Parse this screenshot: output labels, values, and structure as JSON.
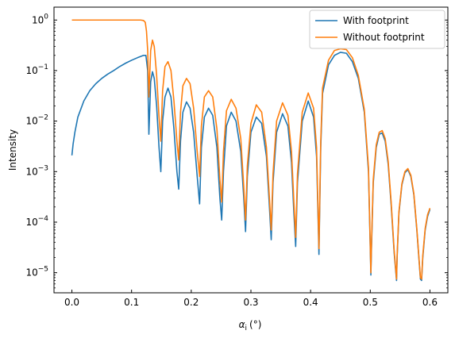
{
  "chart_data": {
    "type": "line",
    "title": "",
    "xlabel_main": "α",
    "xlabel_sub": "i",
    "xlabel_unit": "(°)",
    "ylabel": "Intensity",
    "xlim": [
      -0.03,
      0.63
    ],
    "ylim": [
      4e-06,
      1.8
    ],
    "yscale": "log",
    "x_ticks": [
      0.0,
      0.1,
      0.2,
      0.3,
      0.4,
      0.5,
      0.6
    ],
    "x_tick_labels": [
      "0.0",
      "0.1",
      "0.2",
      "0.3",
      "0.4",
      "0.5",
      "0.6"
    ],
    "y_ticks": [
      1e-05,
      0.0001,
      0.001,
      0.01,
      0.1,
      1
    ],
    "y_tick_labels": [
      {
        "base": "10",
        "exp": "−5"
      },
      {
        "base": "10",
        "exp": "−4"
      },
      {
        "base": "10",
        "exp": "−3"
      },
      {
        "base": "10",
        "exp": "−2"
      },
      {
        "base": "10",
        "exp": "−1"
      },
      {
        "base": "10",
        "exp": "0"
      }
    ],
    "grid": false,
    "legend_position": "top-right",
    "series": [
      {
        "name": "With footprint",
        "color": "#1f77b4",
        "x": [
          0.0,
          0.002,
          0.005,
          0.01,
          0.02,
          0.03,
          0.04,
          0.05,
          0.06,
          0.07,
          0.08,
          0.09,
          0.1,
          0.11,
          0.12,
          0.124,
          0.127,
          0.129,
          0.132,
          0.135,
          0.138,
          0.142,
          0.146,
          0.149,
          0.152,
          0.156,
          0.161,
          0.166,
          0.171,
          0.176,
          0.179,
          0.182,
          0.186,
          0.192,
          0.198,
          0.204,
          0.21,
          0.214,
          0.217,
          0.222,
          0.229,
          0.236,
          0.243,
          0.248,
          0.251,
          0.254,
          0.259,
          0.267,
          0.275,
          0.283,
          0.288,
          0.291,
          0.294,
          0.3,
          0.309,
          0.318,
          0.326,
          0.331,
          0.334,
          0.337,
          0.343,
          0.353,
          0.362,
          0.368,
          0.372,
          0.375,
          0.378,
          0.386,
          0.396,
          0.405,
          0.41,
          0.414,
          0.417,
          0.42,
          0.43,
          0.44,
          0.45,
          0.46,
          0.47,
          0.48,
          0.49,
          0.497,
          0.501,
          0.502,
          0.505,
          0.51,
          0.515,
          0.52,
          0.525,
          0.53,
          0.535,
          0.54,
          0.544,
          0.545,
          0.548,
          0.553,
          0.558,
          0.563,
          0.568,
          0.573,
          0.578,
          0.584,
          0.586,
          0.588,
          0.592,
          0.596,
          0.6
        ],
        "y": [
          0.0021,
          0.0035,
          0.006,
          0.012,
          0.025,
          0.04,
          0.055,
          0.07,
          0.085,
          0.1,
          0.12,
          0.14,
          0.16,
          0.18,
          0.2,
          0.2,
          0.1,
          0.0055,
          0.06,
          0.095,
          0.07,
          0.02,
          0.003,
          0.001,
          0.01,
          0.03,
          0.045,
          0.03,
          0.007,
          0.001,
          0.00045,
          0.004,
          0.015,
          0.024,
          0.018,
          0.006,
          0.0008,
          0.00023,
          0.003,
          0.012,
          0.018,
          0.013,
          0.003,
          0.0003,
          0.00011,
          0.001,
          0.008,
          0.015,
          0.01,
          0.0025,
          0.0003,
          6.5e-05,
          0.0008,
          0.006,
          0.012,
          0.009,
          0.002,
          0.0002,
          4.5e-05,
          0.0006,
          0.006,
          0.014,
          0.008,
          0.0015,
          0.00015,
          3.3e-05,
          0.0006,
          0.01,
          0.025,
          0.012,
          0.002,
          2.3e-05,
          0.003,
          0.035,
          0.13,
          0.2,
          0.23,
          0.22,
          0.15,
          0.07,
          0.015,
          0.001,
          9e-06,
          3e-05,
          0.0006,
          0.003,
          0.0055,
          0.0058,
          0.004,
          0.0014,
          0.00022,
          2.5e-05,
          7e-06,
          2e-05,
          0.00015,
          0.00055,
          0.00095,
          0.0011,
          0.0008,
          0.00035,
          7e-05,
          7.5e-06,
          7e-06,
          2e-05,
          7e-05,
          0.00013,
          0.00018
        ]
      },
      {
        "name": "Without footprint",
        "color": "#ff7f0e",
        "x": [
          0.0,
          0.02,
          0.04,
          0.06,
          0.08,
          0.1,
          0.115,
          0.12,
          0.123,
          0.125,
          0.127,
          0.129,
          0.132,
          0.135,
          0.138,
          0.142,
          0.146,
          0.149,
          0.152,
          0.156,
          0.161,
          0.166,
          0.171,
          0.176,
          0.179,
          0.182,
          0.186,
          0.192,
          0.198,
          0.204,
          0.21,
          0.214,
          0.217,
          0.222,
          0.229,
          0.236,
          0.243,
          0.248,
          0.251,
          0.254,
          0.259,
          0.267,
          0.275,
          0.283,
          0.288,
          0.291,
          0.294,
          0.3,
          0.309,
          0.318,
          0.326,
          0.331,
          0.334,
          0.337,
          0.343,
          0.353,
          0.362,
          0.368,
          0.372,
          0.375,
          0.378,
          0.386,
          0.396,
          0.405,
          0.41,
          0.414,
          0.417,
          0.42,
          0.43,
          0.44,
          0.45,
          0.46,
          0.47,
          0.48,
          0.49,
          0.497,
          0.501,
          0.502,
          0.505,
          0.51,
          0.515,
          0.52,
          0.525,
          0.53,
          0.535,
          0.54,
          0.544,
          0.545,
          0.548,
          0.553,
          0.558,
          0.563,
          0.568,
          0.573,
          0.578,
          0.584,
          0.586,
          0.588,
          0.592,
          0.596,
          0.6
        ],
        "y": [
          1.0,
          1.0,
          1.0,
          1.0,
          1.0,
          1.0,
          1.0,
          0.98,
          0.9,
          0.6,
          0.25,
          0.03,
          0.25,
          0.4,
          0.3,
          0.08,
          0.012,
          0.004,
          0.04,
          0.12,
          0.15,
          0.1,
          0.025,
          0.004,
          0.0017,
          0.015,
          0.05,
          0.07,
          0.055,
          0.018,
          0.0025,
          0.0008,
          0.008,
          0.03,
          0.04,
          0.03,
          0.007,
          0.0007,
          0.00025,
          0.0025,
          0.016,
          0.027,
          0.018,
          0.0045,
          0.0005,
          0.00011,
          0.0013,
          0.009,
          0.021,
          0.015,
          0.003,
          0.0003,
          7e-05,
          0.0009,
          0.01,
          0.023,
          0.013,
          0.0025,
          0.00025,
          5e-05,
          0.0009,
          0.015,
          0.036,
          0.018,
          0.003,
          3e-05,
          0.004,
          0.045,
          0.16,
          0.25,
          0.27,
          0.26,
          0.18,
          0.08,
          0.017,
          0.0012,
          1e-05,
          3.5e-05,
          0.0007,
          0.0034,
          0.006,
          0.0065,
          0.0045,
          0.0016,
          0.00025,
          2.8e-05,
          7.5e-06,
          2.2e-05,
          0.00016,
          0.00058,
          0.001,
          0.00115,
          0.00085,
          0.00037,
          7.5e-05,
          8e-06,
          7.5e-06,
          2.2e-05,
          7.5e-05,
          0.00014,
          0.00019
        ]
      }
    ]
  }
}
